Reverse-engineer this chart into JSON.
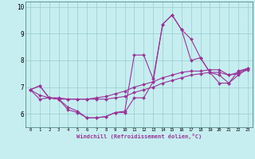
{
  "xlabel": "Windchill (Refroidissement éolien,°C)",
  "bg_color": "#c6eef0",
  "line_color": "#993399",
  "grid_color": "#99cccc",
  "xlim": [
    -0.5,
    23.5
  ],
  "ylim": [
    5.5,
    10.2
  ],
  "yticks": [
    6,
    7,
    8,
    9,
    10
  ],
  "xticks": [
    0,
    1,
    2,
    3,
    4,
    5,
    6,
    7,
    8,
    9,
    10,
    11,
    12,
    13,
    14,
    15,
    16,
    17,
    18,
    19,
    20,
    21,
    22,
    23
  ],
  "series": [
    [
      6.9,
      7.05,
      6.6,
      6.55,
      6.25,
      6.1,
      5.85,
      5.85,
      5.9,
      6.05,
      6.1,
      8.2,
      8.2,
      7.3,
      9.35,
      9.7,
      9.15,
      8.8,
      8.1,
      7.55,
      7.45,
      7.15,
      7.6,
      7.7
    ],
    [
      6.9,
      7.05,
      6.6,
      6.6,
      6.55,
      6.55,
      6.55,
      6.6,
      6.65,
      6.75,
      6.85,
      7.0,
      7.1,
      7.2,
      7.35,
      7.45,
      7.55,
      7.6,
      7.6,
      7.65,
      7.65,
      7.45,
      7.55,
      7.7
    ],
    [
      6.9,
      6.7,
      6.6,
      6.55,
      6.55,
      6.55,
      6.55,
      6.55,
      6.55,
      6.6,
      6.65,
      6.8,
      6.9,
      7.0,
      7.15,
      7.25,
      7.35,
      7.45,
      7.5,
      7.55,
      7.55,
      7.45,
      7.5,
      7.65
    ],
    [
      6.9,
      6.55,
      6.6,
      6.55,
      6.15,
      6.05,
      5.85,
      5.85,
      5.9,
      6.05,
      6.05,
      6.6,
      6.6,
      7.2,
      9.35,
      9.7,
      9.15,
      8.0,
      8.1,
      7.55,
      7.15,
      7.15,
      7.45,
      7.7
    ]
  ]
}
